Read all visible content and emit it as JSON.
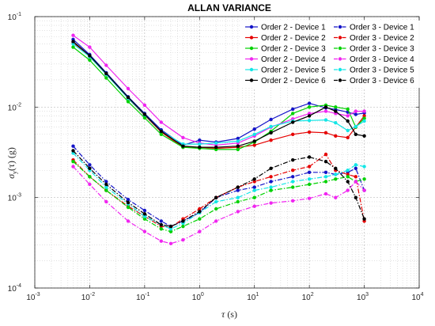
{
  "chart_data": {
    "type": "line",
    "title": "ALLAN VARIANCE",
    "xlabel": "τ (s)",
    "ylabel": "σ_y(τ) (g)",
    "x_scale": "log",
    "y_scale": "log",
    "xlim": [
      0.001,
      10000
    ],
    "ylim": [
      0.0001,
      0.1
    ],
    "grid": true,
    "legend": "top-right",
    "x_ticks": [
      {
        "base": "10",
        "exp": "-3"
      },
      {
        "base": "10",
        "exp": "-2"
      },
      {
        "base": "10",
        "exp": "-1"
      },
      {
        "base": "10",
        "exp": "0"
      },
      {
        "base": "10",
        "exp": "1"
      },
      {
        "base": "10",
        "exp": "2"
      },
      {
        "base": "10",
        "exp": "3"
      },
      {
        "base": "10",
        "exp": "4"
      }
    ],
    "y_ticks": [
      {
        "base": "10",
        "exp": "-4"
      },
      {
        "base": "10",
        "exp": "-3"
      },
      {
        "base": "10",
        "exp": "-2"
      },
      {
        "base": "10",
        "exp": "-1"
      }
    ],
    "series": [
      {
        "name": "Order 2 - Device 1",
        "color": "#1414c8",
        "dash": "solid",
        "x": [
          0.005,
          0.01,
          0.02,
          0.05,
          0.1,
          0.2,
          0.5,
          1,
          2,
          5,
          10,
          20,
          50,
          100,
          200,
          300,
          500,
          700,
          1000
        ],
        "y": [
          0.056,
          0.038,
          0.024,
          0.013,
          0.0085,
          0.0056,
          0.0038,
          0.0043,
          0.0041,
          0.0045,
          0.0057,
          0.0073,
          0.0095,
          0.011,
          0.0098,
          0.0094,
          0.0088,
          0.0083,
          0.0086
        ]
      },
      {
        "name": "Order 2 - Device 2",
        "color": "#e60000",
        "dash": "solid",
        "x": [
          0.005,
          0.01,
          0.02,
          0.05,
          0.1,
          0.2,
          0.5,
          1,
          2,
          5,
          10,
          20,
          50,
          100,
          200,
          300,
          500,
          700,
          1000
        ],
        "y": [
          0.052,
          0.036,
          0.023,
          0.0125,
          0.0081,
          0.0053,
          0.0036,
          0.0036,
          0.0035,
          0.0036,
          0.0038,
          0.0043,
          0.005,
          0.0053,
          0.0052,
          0.0048,
          0.0046,
          0.006,
          0.008
        ]
      },
      {
        "name": "Order 2 - Device 3",
        "color": "#00d200",
        "dash": "solid",
        "x": [
          0.005,
          0.01,
          0.02,
          0.05,
          0.1,
          0.2,
          0.5,
          1,
          2,
          5,
          10,
          20,
          50,
          100,
          200,
          300,
          500,
          700,
          1000
        ],
        "y": [
          0.046,
          0.033,
          0.021,
          0.0115,
          0.0076,
          0.005,
          0.0036,
          0.0035,
          0.0034,
          0.0034,
          0.0041,
          0.0054,
          0.0085,
          0.01,
          0.0105,
          0.01,
          0.0095,
          0.006,
          0.0075
        ]
      },
      {
        "name": "Order 2 - Device 4",
        "color": "#f025f0",
        "dash": "solid",
        "x": [
          0.005,
          0.01,
          0.02,
          0.05,
          0.1,
          0.2,
          0.5,
          1,
          2,
          5,
          10,
          20,
          50,
          100,
          200,
          300,
          500,
          700,
          1000
        ],
        "y": [
          0.062,
          0.046,
          0.029,
          0.016,
          0.0105,
          0.0068,
          0.0046,
          0.004,
          0.0038,
          0.004,
          0.0048,
          0.006,
          0.0074,
          0.0085,
          0.009,
          0.0085,
          0.008,
          0.009,
          0.009
        ]
      },
      {
        "name": "Order 2 - Device 5",
        "color": "#14e6e6",
        "dash": "solid",
        "x": [
          0.005,
          0.01,
          0.02,
          0.05,
          0.1,
          0.2,
          0.5,
          1,
          2,
          5,
          10,
          20,
          50,
          100,
          200,
          300,
          500,
          700,
          1000
        ],
        "y": [
          0.05,
          0.036,
          0.023,
          0.0125,
          0.0082,
          0.0054,
          0.0039,
          0.0039,
          0.004,
          0.0042,
          0.005,
          0.0061,
          0.007,
          0.0071,
          0.0072,
          0.0067,
          0.0055,
          0.0061,
          0.007
        ]
      },
      {
        "name": "Order 2 - Device 6",
        "color": "#000000",
        "dash": "solid",
        "x": [
          0.005,
          0.01,
          0.02,
          0.05,
          0.1,
          0.2,
          0.5,
          1,
          2,
          5,
          10,
          20,
          50,
          100,
          200,
          300,
          500,
          700,
          1000
        ],
        "y": [
          0.053,
          0.037,
          0.0235,
          0.0128,
          0.0083,
          0.0054,
          0.0037,
          0.0036,
          0.0036,
          0.0037,
          0.0042,
          0.0052,
          0.0068,
          0.008,
          0.01,
          0.009,
          0.007,
          0.005,
          0.0048
        ]
      },
      {
        "name": "Order 3 - Device 1",
        "color": "#1414c8",
        "dash": "dashdot",
        "x": [
          0.005,
          0.01,
          0.02,
          0.05,
          0.1,
          0.2,
          0.3,
          0.5,
          1,
          2,
          5,
          10,
          20,
          50,
          100,
          200,
          300,
          500,
          700,
          1000
        ],
        "y": [
          0.0037,
          0.0023,
          0.0015,
          0.00095,
          0.00072,
          0.00055,
          0.00048,
          0.00055,
          0.00068,
          0.001,
          0.0012,
          0.0013,
          0.0015,
          0.0017,
          0.0019,
          0.0019,
          0.0018,
          0.0019,
          0.0021,
          0.0012
        ]
      },
      {
        "name": "Order 3 - Device 2",
        "color": "#e60000",
        "dash": "dashdot",
        "x": [
          0.005,
          0.01,
          0.02,
          0.05,
          0.1,
          0.2,
          0.3,
          0.5,
          1,
          2,
          5,
          10,
          20,
          50,
          100,
          200,
          300,
          500,
          700,
          1000
        ],
        "y": [
          0.0026,
          0.0017,
          0.0012,
          0.0008,
          0.00062,
          0.00048,
          0.00047,
          0.00058,
          0.00075,
          0.001,
          0.0013,
          0.0015,
          0.0017,
          0.002,
          0.0022,
          0.003,
          0.002,
          0.0018,
          0.0017,
          0.00055
        ]
      },
      {
        "name": "Order 3 - Device 3",
        "color": "#00d200",
        "dash": "dashdot",
        "x": [
          0.005,
          0.01,
          0.02,
          0.05,
          0.1,
          0.2,
          0.3,
          0.5,
          1,
          2,
          5,
          10,
          20,
          50,
          100,
          200,
          300,
          500,
          700,
          1000
        ],
        "y": [
          0.0025,
          0.0017,
          0.0012,
          0.00078,
          0.00058,
          0.00045,
          0.00042,
          0.00048,
          0.00058,
          0.00075,
          0.0009,
          0.001,
          0.0012,
          0.0013,
          0.0014,
          0.0015,
          0.0016,
          0.0017,
          0.0015,
          0.0016
        ]
      },
      {
        "name": "Order 3 - Device 4",
        "color": "#f025f0",
        "dash": "dashdot",
        "x": [
          0.005,
          0.01,
          0.02,
          0.05,
          0.1,
          0.2,
          0.3,
          0.5,
          1,
          2,
          5,
          10,
          20,
          50,
          100,
          200,
          300,
          500,
          700,
          1000
        ],
        "y": [
          0.0022,
          0.0014,
          0.0009,
          0.00055,
          0.00042,
          0.00033,
          0.00031,
          0.00034,
          0.00042,
          0.00055,
          0.0007,
          0.0008,
          0.00087,
          0.00092,
          0.00098,
          0.0011,
          0.001,
          0.0012,
          0.0015,
          0.0012
        ]
      },
      {
        "name": "Order 3 - Device 5",
        "color": "#14e6e6",
        "dash": "dashdot",
        "x": [
          0.005,
          0.01,
          0.02,
          0.05,
          0.1,
          0.2,
          0.3,
          0.5,
          1,
          2,
          5,
          10,
          20,
          50,
          100,
          200,
          300,
          500,
          700,
          1000
        ],
        "y": [
          0.0031,
          0.002,
          0.0013,
          0.00085,
          0.00062,
          0.0005,
          0.00045,
          0.00052,
          0.00068,
          0.0009,
          0.001,
          0.0012,
          0.0013,
          0.0015,
          0.0016,
          0.0017,
          0.0018,
          0.002,
          0.0023,
          0.0022
        ]
      },
      {
        "name": "Order 3 - Device 6",
        "color": "#000000",
        "dash": "dashdot",
        "x": [
          0.005,
          0.01,
          0.02,
          0.05,
          0.1,
          0.2,
          0.3,
          0.5,
          1,
          2,
          5,
          10,
          20,
          50,
          100,
          200,
          300,
          500,
          700,
          1000
        ],
        "y": [
          0.0033,
          0.0021,
          0.0014,
          0.00088,
          0.00066,
          0.0005,
          0.00048,
          0.00055,
          0.0007,
          0.001,
          0.0013,
          0.0016,
          0.0021,
          0.0026,
          0.0028,
          0.0025,
          0.0021,
          0.0015,
          0.001,
          0.00058
        ]
      }
    ]
  }
}
